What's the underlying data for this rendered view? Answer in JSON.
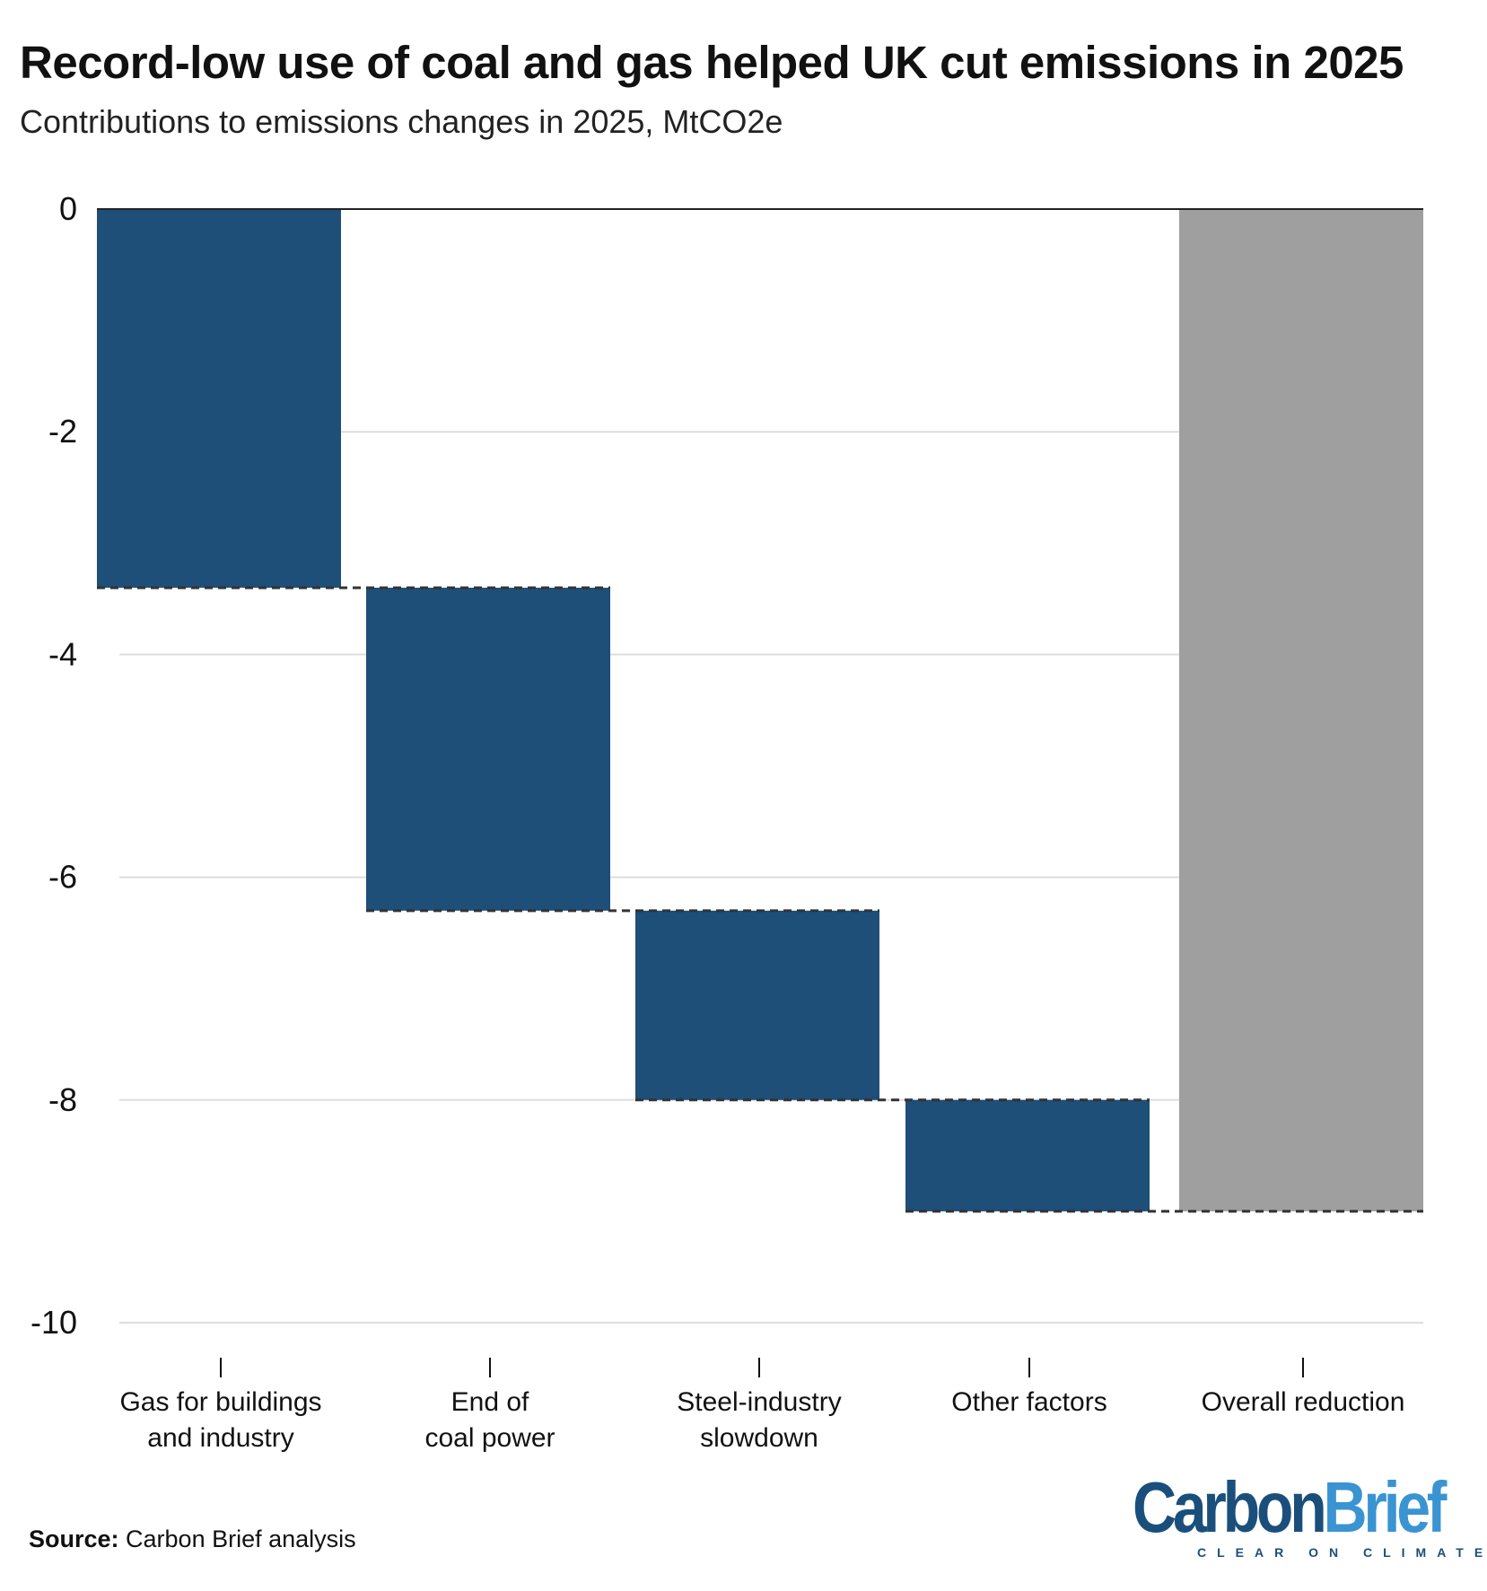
{
  "chart_data": {
    "type": "bar",
    "subtype": "waterfall",
    "title": "Record-low use of coal and gas helped UK cut emissions in 2025",
    "subtitle": "Contributions to emissions changes in 2025, MtCO2e",
    "categories": [
      [
        "Gas for buildings",
        "and industry"
      ],
      [
        "End of",
        "coal power"
      ],
      [
        "Steel-industry",
        "slowdown"
      ],
      [
        "Other factors"
      ],
      [
        "Overall reduction"
      ]
    ],
    "values": [
      -3.4,
      -2.9,
      -1.7,
      -1.0,
      -9.0
    ],
    "is_total": [
      false,
      false,
      false,
      false,
      true
    ],
    "ylim": [
      -10,
      0
    ],
    "yticks": [
      0,
      -2,
      -4,
      -6,
      -8,
      -10
    ],
    "grid": true,
    "colors": {
      "contribution": "#1d4f78",
      "total": "#a09fa0",
      "connector": "#333333",
      "grid": "#dddddd",
      "zero_line": "#222222"
    }
  },
  "source": {
    "label": "Source:",
    "text": " Carbon Brief analysis"
  },
  "logo": {
    "part1": "Carbon",
    "part2": "Brief",
    "tagline": "CLEAR ON CLIMATE"
  }
}
